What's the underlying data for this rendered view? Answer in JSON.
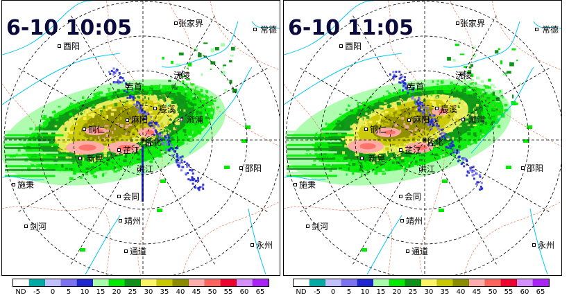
{
  "panels": [
    {
      "timestamp": "6-10 10:05",
      "places": [
        "张家界",
        "常德",
        "酉阳",
        "沅陵",
        "吉首",
        "辰溪",
        "溆浦",
        "麻阳",
        "铜仁",
        "怀化",
        "芷江",
        "新晃",
        "洪江",
        "邵阳",
        "施秉",
        "会同",
        "靖州",
        "剑河",
        "通道",
        "永州"
      ]
    },
    {
      "timestamp": "6-10 11:05",
      "places": [
        "张家界",
        "常德",
        "酉阳",
        "沅陵",
        "吉首",
        "辰溪",
        "溆浦",
        "麻阳",
        "铜仁",
        "怀化",
        "芷江",
        "新晃",
        "洪江",
        "邵阳",
        "施秉",
        "会同",
        "靖州",
        "剑河",
        "通道",
        "永州"
      ]
    }
  ],
  "legend": {
    "labels": [
      "ND",
      "-5",
      "0",
      "5",
      "10",
      "15",
      "20",
      "25",
      "30",
      "35",
      "40",
      "45",
      "50",
      "55",
      "60",
      "65"
    ],
    "colors": [
      "#ffffff",
      "#00aaa5",
      "#c0c0fe",
      "#7a72ee",
      "#1e26d0",
      "#a6fca8",
      "#00ea00",
      "#10921a",
      "#fcf464",
      "#c8c802",
      "#8c8c00",
      "#feacac",
      "#fe645c",
      "#ee0230",
      "#d48efe",
      "#aa24fa"
    ]
  }
}
